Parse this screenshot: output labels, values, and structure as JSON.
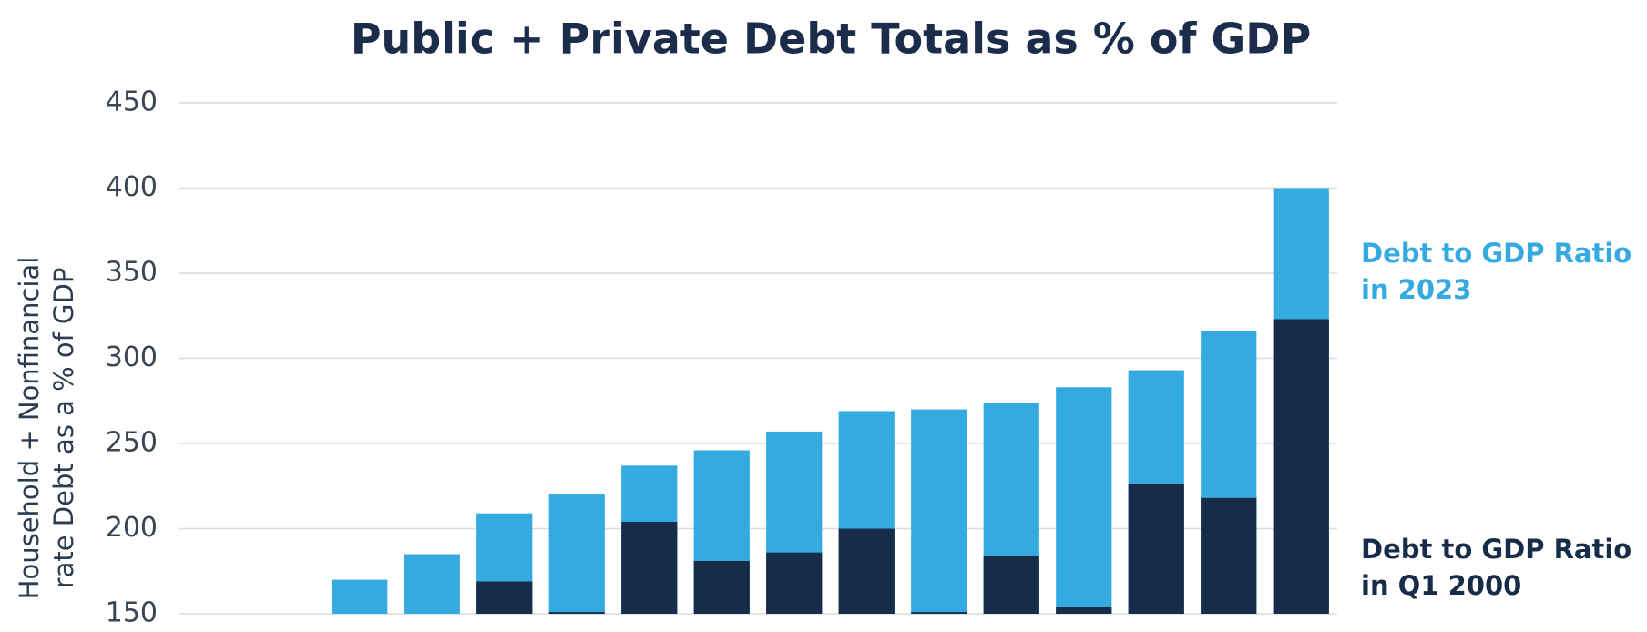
{
  "chart_data": {
    "type": "bar",
    "title": "Public + Private Debt Totals as % of GDP",
    "y_label": [
      "Household + Nonfinancial",
      "rate Debt as a % of GDP"
    ],
    "categories": [
      null,
      null,
      null,
      null,
      null,
      null,
      null,
      null,
      null,
      null,
      null,
      null,
      null,
      null,
      null,
      null
    ],
    "series": [
      {
        "name": "Debt to GDP Ratio in 2023",
        "color": "#35aae1",
        "values": [
          null,
          null,
          170,
          185,
          209,
          220,
          237,
          246,
          257,
          269,
          270,
          274,
          283,
          293,
          316,
          400
        ]
      },
      {
        "name": "Debt to GDP Ratio in Q1 2000",
        "color": "#162c48",
        "values": [
          null,
          null,
          null,
          null,
          169,
          151,
          204,
          181,
          186,
          200,
          151,
          184,
          154,
          226,
          218,
          323
        ]
      }
    ],
    "overlap": true,
    "ylim": [
      150,
      450
    ],
    "yticks": [
      150,
      200,
      250,
      300,
      350,
      400,
      450
    ],
    "grid": true
  }
}
